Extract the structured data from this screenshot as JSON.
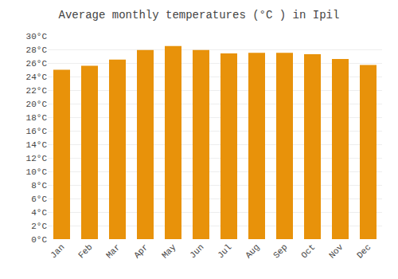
{
  "chart_data": {
    "type": "bar",
    "title": "Average monthly temperatures (°C ) in Ipil",
    "categories": [
      "Jan",
      "Feb",
      "Mar",
      "Apr",
      "May",
      "Jun",
      "Jul",
      "Aug",
      "Sep",
      "Oct",
      "Nov",
      "Dec"
    ],
    "values": [
      25.0,
      25.6,
      26.5,
      27.9,
      28.5,
      27.9,
      27.4,
      27.5,
      27.5,
      27.3,
      26.6,
      25.7
    ],
    "color": "#E8920A",
    "ylim": [
      0,
      30
    ],
    "yticks": [
      {
        "value": 0,
        "label": "0°C"
      },
      {
        "value": 2,
        "label": "2°C"
      },
      {
        "value": 4,
        "label": "4°C"
      },
      {
        "value": 6,
        "label": "6°C"
      },
      {
        "value": 8,
        "label": "8°C"
      },
      {
        "value": 10,
        "label": "10°C"
      },
      {
        "value": 12,
        "label": "12°C"
      },
      {
        "value": 14,
        "label": "14°C"
      },
      {
        "value": 16,
        "label": "16°C"
      },
      {
        "value": 18,
        "label": "18°C"
      },
      {
        "value": 20,
        "label": "20°C"
      },
      {
        "value": 22,
        "label": "22°C"
      },
      {
        "value": 24,
        "label": "24°C"
      },
      {
        "value": 26,
        "label": "26°C"
      },
      {
        "value": 28,
        "label": "28°C"
      },
      {
        "value": 30,
        "label": "30°C"
      }
    ],
    "grid": true
  }
}
